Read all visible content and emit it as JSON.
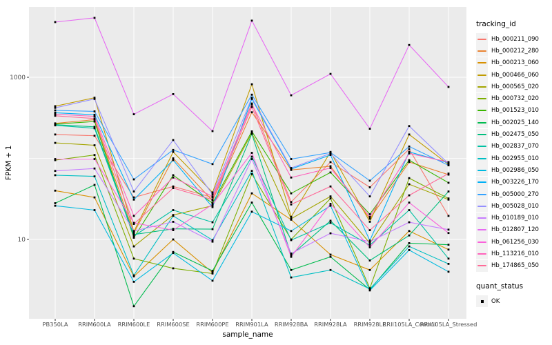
{
  "legend": {
    "tracking_title": "tracking_id",
    "quant_title": "quant_status",
    "quant_items": [
      {
        "label": "OK",
        "marker": "black-square"
      }
    ]
  },
  "chart_data": {
    "type": "line",
    "title": "",
    "xlabel": "sample_name",
    "ylabel": "FPKM + 1",
    "yscale": "log10",
    "ylim": [
      1.05,
      7400
    ],
    "y_major_breaks": [
      10,
      1000
    ],
    "y_minor_breaks": [
      100
    ],
    "y_tick_labels": [
      "10",
      "1000"
    ],
    "grid": "on",
    "legend_position": "right",
    "panel_bg": "#EBEBEB",
    "grid_color": "#FFFFFF",
    "tick_text_color": "#4D4D4D",
    "point_color": "#000000",
    "categories": [
      "PB350LA",
      "RRIM600LA",
      "RRIM600LE",
      "RRIM600SE",
      "RRIM600PE",
      "RRIM901LA",
      "RRIM928BA",
      "RRIM928LA",
      "RRIM928LE",
      "RRII105LA_Control",
      "RRII105LA_Stressed"
    ],
    "series": [
      {
        "name": "Hb_000211_090",
        "color": "#F8766D",
        "values": [
          197,
          190,
          33,
          45,
          33,
          475,
          29,
          90,
          44,
          130,
          19.5
        ]
      },
      {
        "name": "Hb_000212_280",
        "color": "#EA8331",
        "values": [
          270,
          300,
          12,
          100,
          30,
          370,
          72,
          80,
          18,
          90,
          63
        ]
      },
      {
        "name": "Hb_000213_060",
        "color": "#D89000",
        "values": [
          40,
          33,
          3.5,
          10,
          3.9,
          37,
          17.5,
          6.5,
          4.2,
          12.7,
          7.5
        ]
      },
      {
        "name": "Hb_000466_060",
        "color": "#C09B00",
        "values": [
          440,
          560,
          12.5,
          120,
          38,
          820,
          19,
          120,
          16.5,
          197,
          84
        ]
      },
      {
        "name": "Hb_000565_020",
        "color": "#A3A500",
        "values": [
          155,
          145,
          8.2,
          20,
          26,
          205,
          18,
          34,
          9,
          48,
          31
        ]
      },
      {
        "name": "Hb_000732_020",
        "color": "#7CAE00",
        "values": [
          95,
          110,
          5.8,
          4.4,
          3.8,
          64,
          10,
          32,
          2.5,
          57,
          32
        ]
      },
      {
        "name": "Hb_001523_010",
        "color": "#39B600",
        "values": [
          265,
          285,
          10.5,
          62,
          28,
          215,
          37,
          67,
          20.5,
          95,
          50
        ]
      },
      {
        "name": "Hb_002025_140",
        "color": "#00BB4E",
        "values": [
          28,
          47,
          1.5,
          7,
          4.1,
          28.5,
          4.2,
          6.1,
          2.4,
          9,
          8.6
        ]
      },
      {
        "name": "Hb_002475_050",
        "color": "#00BF7D",
        "values": [
          260,
          245,
          11.5,
          13.5,
          13.4,
          200,
          6.4,
          17,
          5.5,
          11.2,
          39
        ]
      },
      {
        "name": "Hb_002837_070",
        "color": "#00C1A3",
        "values": [
          255,
          235,
          11,
          23,
          16.3,
          105,
          9.8,
          16,
          8.5,
          23,
          5.8
        ]
      },
      {
        "name": "Hb_002955_010",
        "color": "#00BFC4",
        "values": [
          62,
          60,
          3.6,
          19.5,
          9.8,
          70,
          3.4,
          4.2,
          2.45,
          8.2,
          5
        ]
      },
      {
        "name": "Hb_002986_050",
        "color": "#00BAE0",
        "values": [
          26,
          23,
          3,
          6.8,
          3.1,
          22,
          12.7,
          26,
          2.35,
          7.4,
          4
        ]
      },
      {
        "name": "Hb_003226_170",
        "color": "#00B0F6",
        "values": [
          365,
          345,
          31,
          95,
          25,
          540,
          74,
          110,
          9.7,
          120,
          88
        ]
      },
      {
        "name": "Hb_005000_270",
        "color": "#35A2FF",
        "values": [
          390,
          380,
          55,
          127,
          85,
          610,
          98,
          118,
          53,
          140,
          82
        ]
      },
      {
        "name": "Hb_005028_010",
        "color": "#9590FF",
        "values": [
          420,
          540,
          39,
          168,
          36,
          560,
          76,
          115,
          34,
          250,
          86
        ]
      },
      {
        "name": "Hb_010189_010",
        "color": "#C77CFF",
        "values": [
          70,
          75,
          12.7,
          16.5,
          9.4,
          98,
          6.7,
          11.9,
          9.4,
          16.3,
          13.2
        ]
      },
      {
        "name": "Hb_012807_120",
        "color": "#E76BF3",
        "values": [
          4800,
          5400,
          350,
          620,
          217,
          5000,
          600,
          1100,
          232,
          2500,
          760
        ]
      },
      {
        "name": "Hb_061256_030",
        "color": "#FA62DB",
        "values": [
          98,
          98,
          16,
          13,
          27,
          117,
          6.1,
          27.5,
          8,
          28.5,
          12
        ]
      },
      {
        "name": "Hb_113216_010",
        "color": "#FF62BC",
        "values": [
          350,
          330,
          19.5,
          58,
          34,
          460,
          58,
          76,
          19,
          115,
          90
        ]
      },
      {
        "name": "Hb_174865_050",
        "color": "#FF6A98",
        "values": [
          335,
          310,
          15.5,
          43,
          31,
          430,
          27,
          45,
          13,
          35,
          65
        ]
      }
    ]
  }
}
